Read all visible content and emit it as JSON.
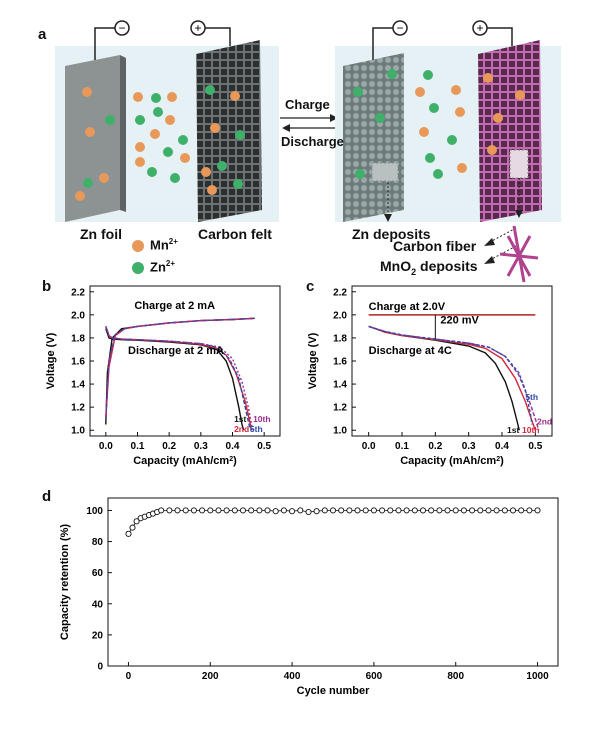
{
  "panel_a": {
    "label": "a",
    "zn_foil": "Zn foil",
    "carbon_felt": "Carbon felt",
    "charge": "Charge",
    "discharge": "Discharge",
    "zn_deposits": "Zn deposits",
    "carbon_fiber": "Carbon fiber",
    "mno2_deposits": "MnO",
    "mno2_sub": "2",
    "mno2_suffix": " deposits",
    "minus_symbol": "−",
    "plus_symbol": "+",
    "legend": [
      {
        "ion": "Mn",
        "charge": "2+",
        "color": "#e8995a"
      },
      {
        "ion": "Zn",
        "charge": "2+",
        "color": "#3fb06a"
      }
    ]
  },
  "chart_data": [
    {
      "id": "b",
      "type": "line",
      "panel_label": "b",
      "xlabel": "Capacity (mAh/cm",
      "xlabel_sup": "2",
      "xlabel_end": ")",
      "ylabel": "Voltage (V)",
      "xlim": [
        -0.05,
        0.55
      ],
      "ylim": [
        0.95,
        2.25
      ],
      "xticks": [
        "0.0",
        "0.1",
        "0.2",
        "0.3",
        "0.4",
        "0.5"
      ],
      "yticks": [
        "1.0",
        "1.2",
        "1.4",
        "1.6",
        "1.8",
        "2.0",
        "2.2"
      ],
      "annotations": [
        "Charge at 2 mA",
        "Discharge at 2 mA"
      ],
      "series": [
        {
          "name": "1st",
          "color": "#111111",
          "discharge_x": [
            0.0,
            0.01,
            0.02,
            0.05,
            0.1,
            0.2,
            0.3,
            0.35,
            0.38,
            0.4,
            0.42,
            0.43,
            0.435
          ],
          "discharge_y": [
            1.88,
            1.8,
            1.79,
            1.785,
            1.78,
            1.765,
            1.74,
            1.7,
            1.6,
            1.45,
            1.2,
            1.05,
            1.0
          ],
          "charge_x": [
            0.0,
            0.005,
            0.02,
            0.05,
            0.1,
            0.2,
            0.3,
            0.4,
            0.47
          ],
          "charge_y": [
            1.05,
            1.5,
            1.8,
            1.88,
            1.9,
            1.93,
            1.95,
            1.96,
            1.97
          ]
        },
        {
          "name": "2nd",
          "color": "#d0283c",
          "discharge_x": [
            0.0,
            0.01,
            0.02,
            0.05,
            0.1,
            0.2,
            0.3,
            0.35,
            0.38,
            0.41,
            0.44,
            0.455,
            0.46
          ],
          "discharge_y": [
            1.9,
            1.82,
            1.8,
            1.79,
            1.785,
            1.77,
            1.745,
            1.71,
            1.65,
            1.5,
            1.25,
            1.07,
            1.0
          ],
          "charge_x": [
            0.0,
            0.01,
            0.03,
            0.06,
            0.1,
            0.2,
            0.3,
            0.4,
            0.47
          ],
          "charge_y": [
            1.1,
            1.55,
            1.82,
            1.88,
            1.9,
            1.93,
            1.95,
            1.96,
            1.97
          ]
        },
        {
          "name": "5th",
          "color": "#2b4aa8",
          "discharge_x": [
            0.0,
            0.01,
            0.02,
            0.05,
            0.1,
            0.2,
            0.3,
            0.35,
            0.39,
            0.42,
            0.44,
            0.452,
            0.458
          ],
          "discharge_y": [
            1.9,
            1.82,
            1.8,
            1.79,
            1.785,
            1.772,
            1.75,
            1.72,
            1.62,
            1.45,
            1.2,
            1.05,
            1.0
          ],
          "charge_x": [
            0.0,
            0.01,
            0.03,
            0.06,
            0.1,
            0.2,
            0.3,
            0.4,
            0.47
          ],
          "charge_y": [
            1.1,
            1.6,
            1.83,
            1.88,
            1.9,
            1.93,
            1.95,
            1.96,
            1.97
          ]
        },
        {
          "name": "10th",
          "color": "#9a2e8c",
          "discharge_x": [
            0.0,
            0.01,
            0.02,
            0.05,
            0.1,
            0.2,
            0.3,
            0.36,
            0.4,
            0.43,
            0.45,
            0.46,
            0.465
          ],
          "discharge_y": [
            1.9,
            1.82,
            1.8,
            1.79,
            1.785,
            1.773,
            1.752,
            1.72,
            1.62,
            1.42,
            1.2,
            1.05,
            1.0
          ],
          "charge_x": [
            0.0,
            0.01,
            0.03,
            0.06,
            0.1,
            0.2,
            0.3,
            0.4,
            0.47
          ],
          "charge_y": [
            1.12,
            1.6,
            1.83,
            1.88,
            1.9,
            1.93,
            1.95,
            1.96,
            1.97
          ]
        }
      ]
    },
    {
      "id": "c",
      "type": "line",
      "panel_label": "c",
      "xlabel": "Capacity (mAh/cm",
      "xlabel_sup": "2",
      "xlabel_end": ")",
      "ylabel": "Voltage (V)",
      "xlim": [
        -0.05,
        0.55
      ],
      "ylim": [
        0.95,
        2.25
      ],
      "xticks": [
        "0.0",
        "0.1",
        "0.2",
        "0.3",
        "0.4",
        "0.5"
      ],
      "yticks": [
        "1.0",
        "1.2",
        "1.4",
        "1.6",
        "1.8",
        "2.0",
        "2.2"
      ],
      "annotations": [
        "Charge at 2.0V",
        "220 mV",
        "Discharge at 4C"
      ],
      "charge_line": {
        "y": 2.0,
        "x": [
          0.0,
          0.5
        ],
        "color": "#b22222"
      },
      "series": [
        {
          "name": "1st",
          "color": "#111111",
          "discharge_x": [
            0.0,
            0.05,
            0.1,
            0.2,
            0.3,
            0.35,
            0.38,
            0.41,
            0.43,
            0.445,
            0.452
          ],
          "discharge_y": [
            1.9,
            1.85,
            1.82,
            1.78,
            1.73,
            1.67,
            1.58,
            1.42,
            1.25,
            1.08,
            1.0
          ]
        },
        {
          "name": "10th",
          "color": "#d0283c",
          "discharge_x": [
            0.0,
            0.05,
            0.1,
            0.2,
            0.3,
            0.35,
            0.4,
            0.44,
            0.47,
            0.49,
            0.5
          ],
          "discharge_y": [
            1.9,
            1.85,
            1.82,
            1.785,
            1.745,
            1.71,
            1.62,
            1.45,
            1.25,
            1.08,
            1.0
          ]
        },
        {
          "name": "2nd",
          "color": "#9a2e8c",
          "discharge_x": [
            0.0,
            0.05,
            0.1,
            0.2,
            0.3,
            0.36,
            0.41,
            0.45,
            0.48,
            0.5,
            0.51
          ],
          "discharge_y": [
            1.9,
            1.855,
            1.825,
            1.79,
            1.755,
            1.72,
            1.64,
            1.48,
            1.27,
            1.1,
            1.0
          ]
        },
        {
          "name": "5th",
          "color": "#2b4aa8",
          "discharge_x": [
            0.0,
            0.05,
            0.1,
            0.2,
            0.3,
            0.36,
            0.41,
            0.45,
            0.47,
            0.485,
            0.49
          ],
          "discharge_y": [
            1.9,
            1.855,
            1.825,
            1.79,
            1.755,
            1.72,
            1.64,
            1.5,
            1.35,
            1.15,
            1.05
          ]
        }
      ],
      "labels": [
        "1st",
        "10th",
        "2nd",
        "5th"
      ]
    },
    {
      "id": "d",
      "type": "scatter",
      "panel_label": "d",
      "xlabel": "Cycle number",
      "ylabel": "Capacity retention (%)",
      "xlim": [
        -50,
        1050
      ],
      "ylim": [
        0,
        108
      ],
      "xticks": [
        "0",
        "200",
        "400",
        "600",
        "800",
        "1000"
      ],
      "yticks": [
        "0",
        "20",
        "40",
        "60",
        "80",
        "100"
      ],
      "x": [
        0,
        10,
        20,
        30,
        40,
        50,
        60,
        70,
        80,
        100,
        120,
        140,
        160,
        180,
        200,
        220,
        240,
        260,
        280,
        300,
        320,
        340,
        360,
        380,
        400,
        420,
        440,
        460,
        480,
        500,
        520,
        540,
        560,
        580,
        600,
        620,
        640,
        660,
        680,
        700,
        720,
        740,
        760,
        780,
        800,
        820,
        840,
        860,
        880,
        900,
        920,
        940,
        960,
        980,
        1000
      ],
      "y": [
        85,
        89,
        93,
        95,
        96,
        97,
        98,
        99,
        100,
        100,
        100,
        100,
        100,
        100,
        100,
        100,
        100,
        100,
        100,
        100,
        100,
        100,
        99.5,
        100,
        99.5,
        100,
        99,
        99.5,
        100,
        100,
        100,
        100,
        100,
        100,
        100,
        100,
        100,
        100,
        100,
        100,
        100,
        100,
        100,
        100,
        100,
        100,
        100,
        100,
        100,
        100,
        100,
        100,
        100,
        100,
        100
      ]
    }
  ]
}
